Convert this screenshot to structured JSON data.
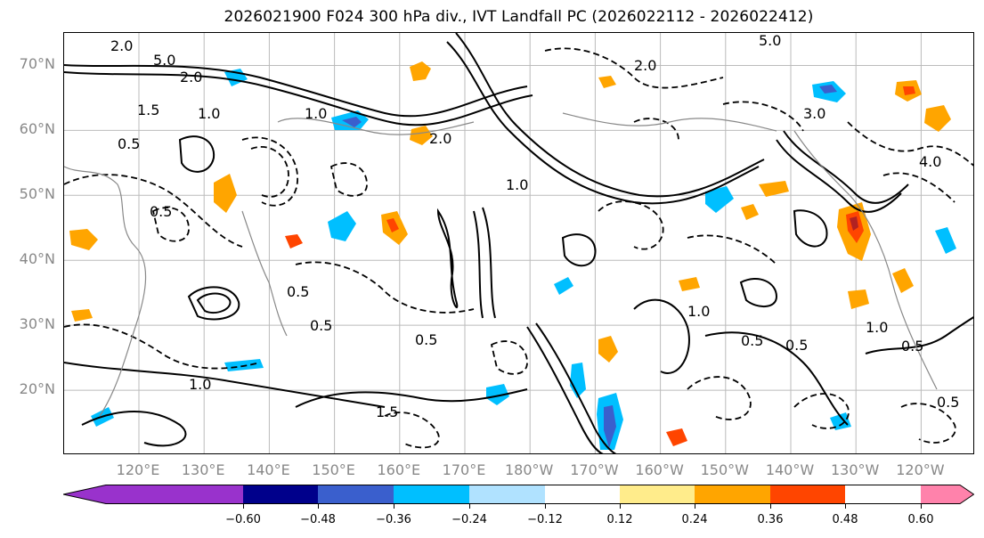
{
  "title": "2026021900 F024 300 hPa div., IVT Landfall PC (2026022112 - 2026022412)",
  "map": {
    "lat_labels": [
      {
        "text": "70°N",
        "value": 70
      },
      {
        "text": "60°N",
        "value": 60
      },
      {
        "text": "50°N",
        "value": 50
      },
      {
        "text": "40°N",
        "value": 40
      },
      {
        "text": "30°N",
        "value": 30
      },
      {
        "text": "20°N",
        "value": 20
      }
    ],
    "lon_labels": [
      "120°E",
      "130°E",
      "140°E",
      "150°E",
      "160°E",
      "170°E",
      "180°W",
      "170°W",
      "160°W",
      "150°W",
      "140°W",
      "130°W",
      "120°W"
    ],
    "contour_labels": [
      "2.0",
      "5.0",
      "2.0",
      "1.5",
      "1.0",
      "0.5",
      "1.0",
      "2.0",
      "3.0",
      "4.0",
      "1.0",
      "0.5",
      "0.5",
      "0.5",
      "1.0",
      "1.5",
      "0.5",
      "1.0",
      "0.5",
      "0.5",
      "1.0",
      "0.5",
      "0.5",
      "5.0",
      "2.0"
    ]
  },
  "colorbar": {
    "colors": [
      "#9932CC",
      "#00008B",
      "#3A5FCD",
      "#00BFFF",
      "#B0E2FF",
      "#FFFFFF",
      "#FFEC8B",
      "#FFA500",
      "#FF4500",
      "#B22222",
      "#FF82AB"
    ],
    "ticks": [
      "−0.60",
      "−0.48",
      "−0.36",
      "−0.24",
      "−0.12",
      "0.12",
      "0.24",
      "0.36",
      "0.48",
      "0.60"
    ]
  }
}
